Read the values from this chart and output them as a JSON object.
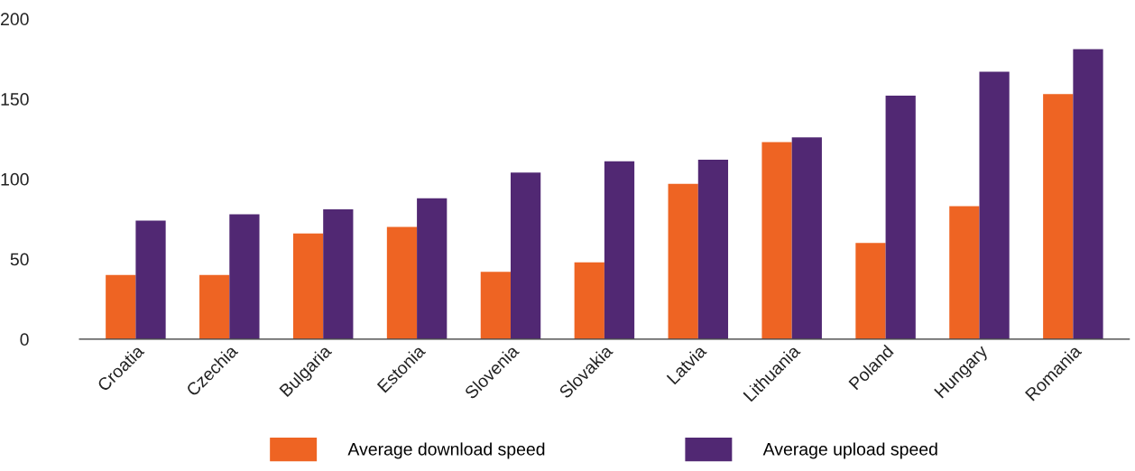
{
  "chart_data": {
    "type": "bar",
    "categories": [
      "Croatia",
      "Czechia",
      "Bulgaria",
      "Estonia",
      "Slovenia",
      "Slovakia",
      "Latvia",
      "Lithuania",
      "Poland",
      "Hungary",
      "Romania"
    ],
    "series": [
      {
        "name": "Average download speed",
        "color": "#ee6423",
        "values": [
          40,
          40,
          66,
          70,
          42,
          48,
          97,
          123,
          60,
          83,
          153
        ]
      },
      {
        "name": "Average upload speed",
        "color": "#512873",
        "values": [
          74,
          78,
          81,
          88,
          104,
          111,
          112,
          126,
          152,
          167,
          181
        ]
      }
    ],
    "ylim": [
      0,
      200
    ],
    "yticks": [
      0,
      50,
      100,
      150,
      200
    ],
    "grid": false,
    "legend": "bottom"
  }
}
